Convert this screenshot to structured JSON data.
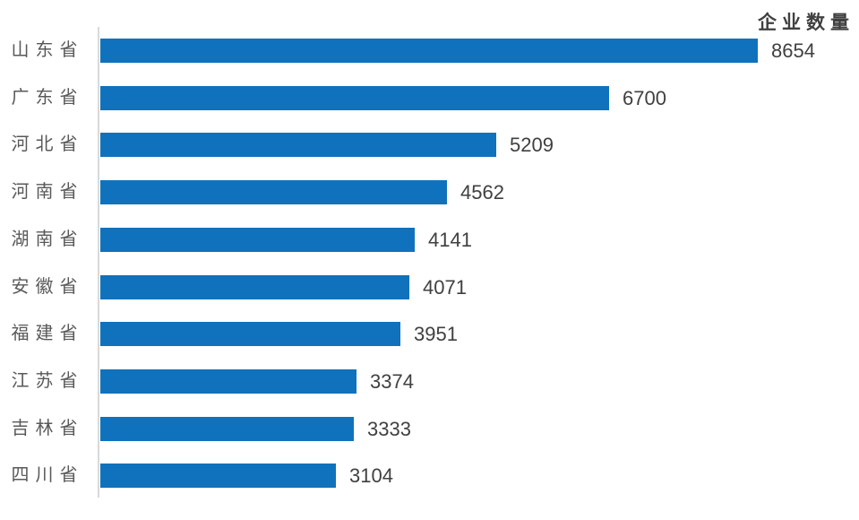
{
  "chart_data": {
    "type": "bar",
    "orientation": "horizontal",
    "title": "企业数量",
    "categories": [
      "山东省",
      "广东省",
      "河北省",
      "河南省",
      "湖南省",
      "安徽省",
      "福建省",
      "江苏省",
      "吉林省",
      "四川省"
    ],
    "values": [
      8654,
      6700,
      5209,
      4562,
      4141,
      4071,
      3951,
      3374,
      3333,
      3104
    ],
    "xlabel": "",
    "ylabel": "",
    "xlim": [
      0,
      8654
    ],
    "grid": false,
    "legend": false,
    "data_labels": true,
    "colors": {
      "bar": "#1072bc",
      "axis_line": "#d9d9d9",
      "category_label": "#595959",
      "value_label": "#404040",
      "title": "#404040"
    }
  }
}
